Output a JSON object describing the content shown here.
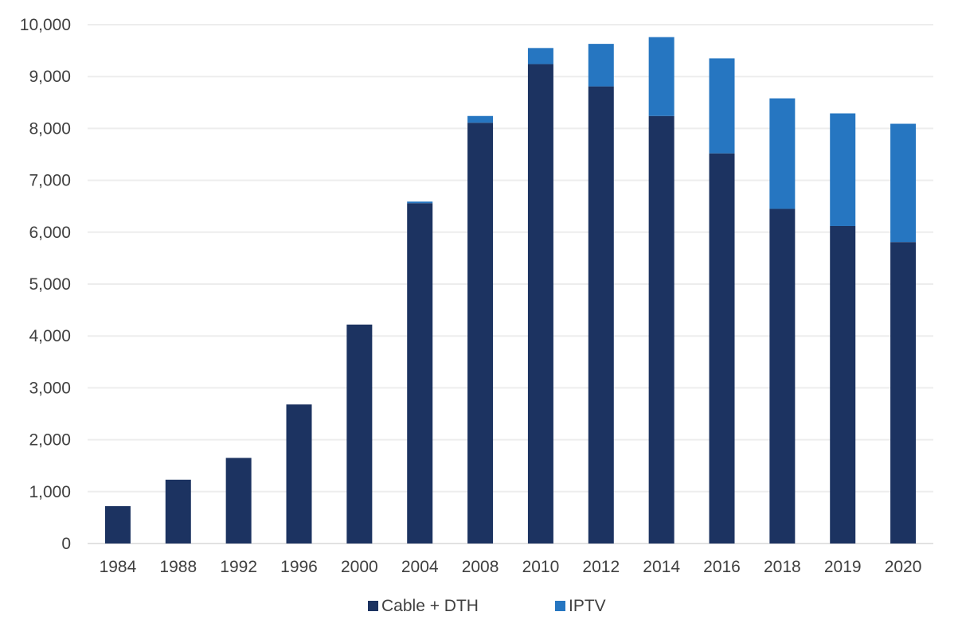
{
  "chart_data": {
    "type": "bar",
    "stacked": true,
    "categories": [
      "1984",
      "1988",
      "1992",
      "1996",
      "2000",
      "2004",
      "2008",
      "2010",
      "2012",
      "2014",
      "2016",
      "2018",
      "2019",
      "2020"
    ],
    "series": [
      {
        "name": "Cable + DTH",
        "color": "#1c3361",
        "values": [
          720,
          1230,
          1650,
          2680,
          4220,
          6560,
          8110,
          9240,
          8810,
          8240,
          7520,
          6450,
          6120,
          5810
        ]
      },
      {
        "name": "IPTV",
        "color": "#2676c1",
        "values": [
          0,
          0,
          0,
          0,
          0,
          30,
          130,
          310,
          820,
          1520,
          1830,
          2130,
          2170,
          2280
        ]
      }
    ],
    "title": "",
    "xlabel": "",
    "ylabel": "",
    "ylim": [
      0,
      10000
    ],
    "yticks": [
      "0",
      "1,000",
      "2,000",
      "3,000",
      "4,000",
      "5,000",
      "6,000",
      "7,000",
      "8,000",
      "9,000",
      "10,000"
    ],
    "grid": true,
    "legend_position": "bottom-center"
  }
}
